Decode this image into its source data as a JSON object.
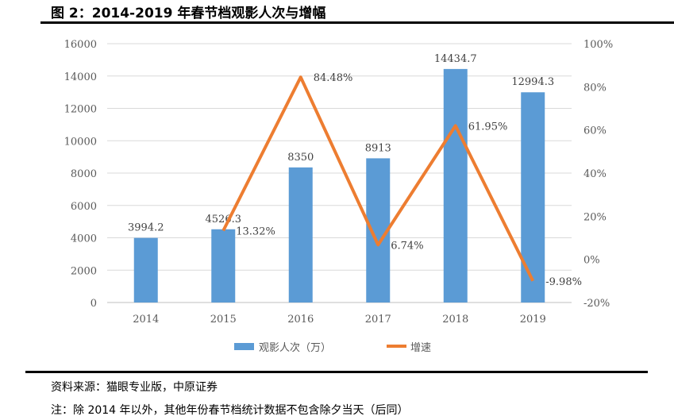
{
  "title": "图 2：2014-2019 年春节档观影人次与增幅",
  "source": "资料来源：猫眼专业版，中原证券",
  "note": "注：除 2014 年以外，其他年份春节档统计数据不包含除夕当天（后同）",
  "chart_data": {
    "type": "bar",
    "categories": [
      "2014",
      "2015",
      "2016",
      "2017",
      "2018",
      "2019"
    ],
    "series": [
      {
        "name": "观影人次（万）",
        "type": "bar",
        "axis": "left",
        "color": "#5B9BD5",
        "values": [
          3994.2,
          4526.3,
          8350,
          8913,
          14434.7,
          12994.3
        ],
        "labels": [
          "3994.2",
          "4526.3",
          "8350",
          "8913",
          "14434.7",
          "12994.3"
        ]
      },
      {
        "name": "增速",
        "type": "line",
        "axis": "right",
        "color": "#ED7D31",
        "values": [
          null,
          13.32,
          84.48,
          6.74,
          61.95,
          -9.98
        ],
        "labels": [
          "",
          "13.32%",
          "84.48%",
          "6.74%",
          "61.95%",
          "-9.98%"
        ]
      }
    ],
    "ylim": [
      0,
      16000
    ],
    "yticks": [
      "0",
      "2000",
      "4000",
      "6000",
      "8000",
      "10000",
      "12000",
      "14000",
      "16000"
    ],
    "y2lim": [
      -20,
      100
    ],
    "y2ticks": [
      "-20%",
      "0%",
      "20%",
      "40%",
      "60%",
      "80%",
      "100%"
    ],
    "grid": true,
    "legend": "bottom"
  }
}
